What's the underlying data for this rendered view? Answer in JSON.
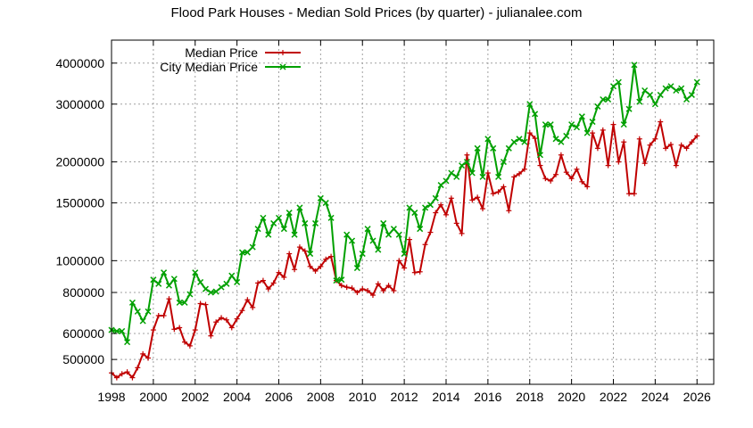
{
  "chart_data": {
    "type": "line",
    "title": "Flood Park Houses - Median Sold Prices (by quarter) - julianalee.com",
    "xlabel": "",
    "ylabel": "",
    "xlim": [
      1998,
      2026.8
    ],
    "ylim": [
      420000,
      4700000
    ],
    "yscale": "log",
    "grid": true,
    "legend_position": "top-left",
    "x_ticks": [
      1998,
      2000,
      2002,
      2004,
      2006,
      2008,
      2010,
      2012,
      2014,
      2016,
      2018,
      2020,
      2022,
      2024,
      2026
    ],
    "x_tick_labels": [
      "1998",
      "2000",
      "2002",
      "2004",
      "2006",
      "2008",
      "2010",
      "2012",
      "2014",
      "2016",
      "2018",
      "2020",
      "2022",
      "2024",
      "2026"
    ],
    "y_ticks": [
      500000,
      600000,
      800000,
      1000000,
      1500000,
      2000000,
      3000000,
      4000000
    ],
    "y_tick_labels": [
      "500000",
      "600000",
      "800000",
      "1000000",
      "1500000",
      "2000000",
      "3000000",
      "4000000"
    ],
    "series": [
      {
        "name": "Median Price",
        "color": "#c00000",
        "marker": "plus",
        "x": [
          1998.0,
          1998.25,
          1998.5,
          1998.75,
          1999.0,
          1999.25,
          1999.5,
          1999.75,
          2000.0,
          2000.25,
          2000.5,
          2000.75,
          2001.0,
          2001.25,
          2001.5,
          2001.75,
          2002.0,
          2002.25,
          2002.5,
          2002.75,
          2003.0,
          2003.25,
          2003.5,
          2003.75,
          2004.0,
          2004.25,
          2004.5,
          2004.75,
          2005.0,
          2005.25,
          2005.5,
          2005.75,
          2006.0,
          2006.25,
          2006.5,
          2006.75,
          2007.0,
          2007.25,
          2007.5,
          2007.75,
          2008.0,
          2008.25,
          2008.5,
          2008.75,
          2009.0,
          2009.25,
          2009.5,
          2009.75,
          2010.0,
          2010.25,
          2010.5,
          2010.75,
          2011.0,
          2011.25,
          2011.5,
          2011.75,
          2012.0,
          2012.25,
          2012.5,
          2012.75,
          2013.0,
          2013.25,
          2013.5,
          2013.75,
          2014.0,
          2014.25,
          2014.5,
          2014.75,
          2015.0,
          2015.25,
          2015.5,
          2015.75,
          2016.0,
          2016.25,
          2016.5,
          2016.75,
          2017.0,
          2017.25,
          2017.5,
          2017.75,
          2018.0,
          2018.25,
          2018.5,
          2018.75,
          2019.0,
          2019.25,
          2019.5,
          2019.75,
          2020.0,
          2020.25,
          2020.5,
          2020.75,
          2021.0,
          2021.25,
          2021.5,
          2021.75,
          2022.0,
          2022.25,
          2022.5,
          2022.75,
          2023.0,
          2023.25,
          2023.5,
          2023.75,
          2024.0,
          2024.25,
          2024.5,
          2024.75,
          2025.0,
          2025.25,
          2025.5,
          2025.75,
          2026.0
        ],
        "y": [
          455000,
          440000,
          452000,
          458000,
          440000,
          472000,
          520000,
          505000,
          615000,
          680000,
          680000,
          765000,
          618000,
          625000,
          565000,
          550000,
          615000,
          740000,
          735000,
          590000,
          650000,
          670000,
          660000,
          625000,
          665000,
          705000,
          760000,
          720000,
          855000,
          870000,
          820000,
          855000,
          920000,
          890000,
          1050000,
          940000,
          1100000,
          1070000,
          960000,
          930000,
          960000,
          1010000,
          1030000,
          870000,
          840000,
          830000,
          825000,
          800000,
          820000,
          810000,
          785000,
          850000,
          810000,
          840000,
          810000,
          1000000,
          950000,
          1160000,
          920000,
          925000,
          1120000,
          1220000,
          1400000,
          1480000,
          1380000,
          1550000,
          1300000,
          1210000,
          2100000,
          1530000,
          1560000,
          1440000,
          1850000,
          1600000,
          1620000,
          1680000,
          1420000,
          1800000,
          1840000,
          1900000,
          2450000,
          2360000,
          1950000,
          1780000,
          1750000,
          1830000,
          2100000,
          1860000,
          1780000,
          1900000,
          1740000,
          1680000,
          2450000,
          2200000,
          2500000,
          1950000,
          2600000,
          2000000,
          2300000,
          1600000,
          1600000,
          2350000,
          1980000,
          2250000,
          2350000,
          2650000,
          2200000,
          2260000,
          1950000,
          2250000,
          2200000,
          2300000,
          2400000
        ]
      },
      {
        "name": "City Median Price",
        "color": "#00a000",
        "marker": "cross",
        "x": [
          1998.0,
          1998.25,
          1998.5,
          1998.75,
          1999.0,
          1999.25,
          1999.5,
          1999.75,
          2000.0,
          2000.25,
          2000.5,
          2000.75,
          2001.0,
          2001.25,
          2001.5,
          2001.75,
          2002.0,
          2002.25,
          2002.5,
          2002.75,
          2003.0,
          2003.25,
          2003.5,
          2003.75,
          2004.0,
          2004.25,
          2004.5,
          2004.75,
          2005.0,
          2005.25,
          2005.5,
          2005.75,
          2006.0,
          2006.25,
          2006.5,
          2006.75,
          2007.0,
          2007.25,
          2007.5,
          2007.75,
          2008.0,
          2008.25,
          2008.5,
          2008.75,
          2009.0,
          2009.25,
          2009.5,
          2009.75,
          2010.0,
          2010.25,
          2010.5,
          2010.75,
          2011.0,
          2011.25,
          2011.5,
          2011.75,
          2012.0,
          2012.25,
          2012.5,
          2012.75,
          2013.0,
          2013.25,
          2013.5,
          2013.75,
          2014.0,
          2014.25,
          2014.5,
          2014.75,
          2015.0,
          2015.25,
          2015.5,
          2015.75,
          2016.0,
          2016.25,
          2016.5,
          2016.75,
          2017.0,
          2017.25,
          2017.5,
          2017.75,
          2018.0,
          2018.25,
          2018.5,
          2018.75,
          2019.0,
          2019.25,
          2019.5,
          2019.75,
          2020.0,
          2020.25,
          2020.5,
          2020.75,
          2021.0,
          2021.25,
          2021.5,
          2021.75,
          2022.0,
          2022.25,
          2022.5,
          2022.75,
          2023.0,
          2023.25,
          2023.5,
          2023.75,
          2024.0,
          2024.25,
          2024.5,
          2024.75,
          2025.0,
          2025.25,
          2025.5,
          2025.75,
          2026.0
        ],
        "y": [
          615000,
          610000,
          610000,
          565000,
          745000,
          700000,
          655000,
          700000,
          875000,
          850000,
          920000,
          840000,
          880000,
          745000,
          745000,
          790000,
          920000,
          860000,
          820000,
          800000,
          805000,
          830000,
          850000,
          900000,
          860000,
          1060000,
          1060000,
          1100000,
          1250000,
          1350000,
          1200000,
          1300000,
          1350000,
          1250000,
          1400000,
          1200000,
          1450000,
          1300000,
          1050000,
          1300000,
          1550000,
          1500000,
          1350000,
          870000,
          875000,
          1200000,
          1150000,
          950000,
          1050000,
          1250000,
          1150000,
          1080000,
          1300000,
          1200000,
          1250000,
          1200000,
          1050000,
          1450000,
          1400000,
          1250000,
          1450000,
          1480000,
          1550000,
          1700000,
          1750000,
          1850000,
          1800000,
          1950000,
          2000000,
          1850000,
          2200000,
          1800000,
          2350000,
          2200000,
          1800000,
          2000000,
          2200000,
          2300000,
          2350000,
          2300000,
          3000000,
          2800000,
          2100000,
          2600000,
          2600000,
          2350000,
          2300000,
          2400000,
          2600000,
          2550000,
          2750000,
          2450000,
          2650000,
          2950000,
          3100000,
          3100000,
          3400000,
          3500000,
          2600000,
          2900000,
          3950000,
          3050000,
          3300000,
          3200000,
          3000000,
          3200000,
          3350000,
          3400000,
          3300000,
          3350000,
          3100000,
          3200000,
          3500000
        ]
      }
    ]
  }
}
